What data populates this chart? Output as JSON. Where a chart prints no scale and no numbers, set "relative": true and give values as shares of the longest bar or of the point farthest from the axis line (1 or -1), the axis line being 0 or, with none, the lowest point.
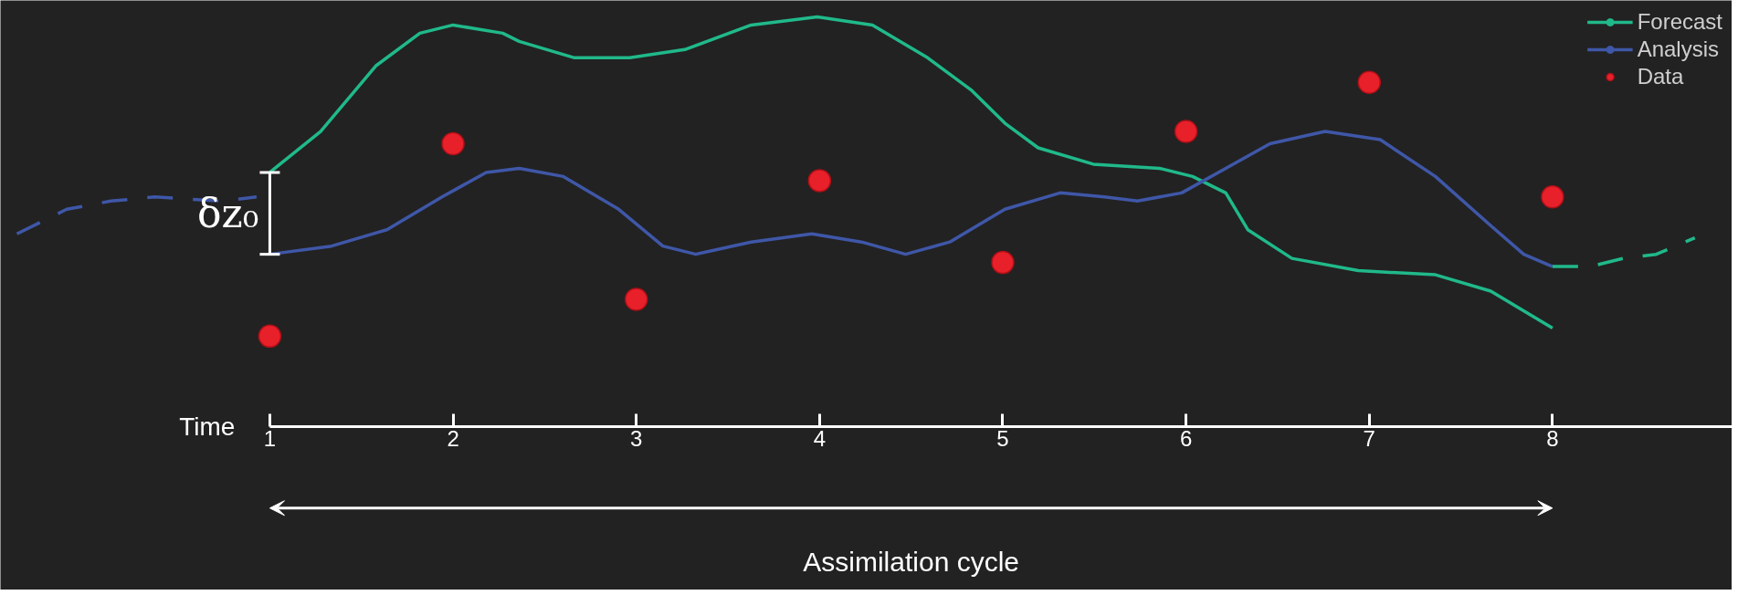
{
  "chart_data": {
    "type": "line",
    "relative": true,
    "xlabel": "Time",
    "xlim": [
      -0.47,
      8.98
    ],
    "xticks": [
      1,
      2,
      3,
      4,
      5,
      6,
      7,
      8
    ],
    "legend": "top right",
    "grid": false,
    "annotations": [
      "δz₀",
      "Assimilation cycle"
    ],
    "series": [
      {
        "name": "Forecast",
        "color": "#20b98a",
        "x": [
          1.0,
          1.277,
          1.578,
          1.819,
          2.0,
          2.271,
          2.361,
          2.663,
          2.964,
          3.265,
          3.627,
          3.988,
          4.289,
          4.59,
          4.831,
          5.012,
          5.193,
          5.494,
          5.855,
          6.036,
          6.217,
          6.337,
          6.578,
          6.94,
          7.361,
          7.663,
          8.0
        ],
        "values": [
          0.62,
          0.72,
          0.88,
          0.96,
          0.98,
          0.96,
          0.94,
          0.9,
          0.9,
          0.92,
          0.98,
          1.0,
          0.98,
          0.9,
          0.82,
          0.74,
          0.68,
          0.64,
          0.63,
          0.61,
          0.57,
          0.48,
          0.41,
          0.38,
          0.37,
          0.33,
          0.24
        ]
      },
      {
        "name": "Analysis",
        "color": "#3f57a8",
        "x": [
          1.0,
          1.337,
          1.639,
          1.94,
          2.181,
          2.361,
          2.602,
          2.904,
          3.145,
          3.325,
          3.627,
          3.958,
          4.229,
          4.47,
          4.711,
          5.012,
          5.313,
          5.554,
          5.735,
          5.976,
          6.217,
          6.458,
          6.759,
          7.06,
          7.361,
          7.663,
          7.843,
          8.0
        ],
        "values": [
          0.42,
          0.44,
          0.48,
          0.56,
          0.62,
          0.63,
          0.61,
          0.53,
          0.44,
          0.42,
          0.45,
          0.47,
          0.45,
          0.42,
          0.45,
          0.53,
          0.57,
          0.56,
          0.55,
          0.57,
          0.63,
          0.69,
          0.72,
          0.7,
          0.61,
          0.49,
          0.42,
          0.39
        ]
      },
      {
        "name": "Data",
        "type": "scatter",
        "marker": "circle",
        "color": "#e8202a",
        "x": [
          1,
          2,
          3,
          4,
          5,
          6,
          7,
          8
        ],
        "values": [
          0.22,
          0.69,
          0.31,
          0.6,
          0.4,
          0.72,
          0.84,
          0.56
        ]
      },
      {
        "color": "#3f57a8",
        "line_style": "dashed",
        "x": [
          -0.38,
          -0.108,
          0.133,
          0.373,
          0.735,
          0.928
        ],
        "values": [
          0.47,
          0.53,
          0.55,
          0.56,
          0.55,
          0.56
        ]
      },
      {
        "color": "#20b98a",
        "line_style": "dashed",
        "x": [
          8.0,
          8.205,
          8.386,
          8.566,
          8.777
        ],
        "values": [
          0.39,
          0.39,
          0.41,
          0.42,
          0.46
        ]
      }
    ]
  }
}
